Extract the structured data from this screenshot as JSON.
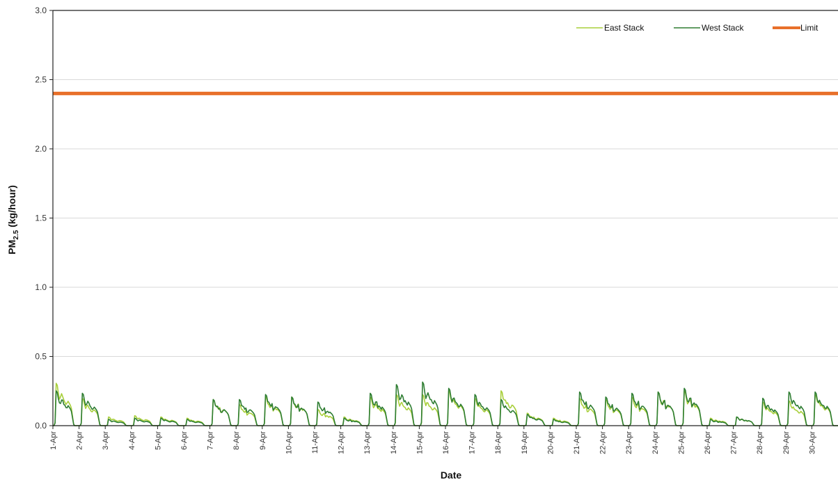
{
  "chart_data": {
    "type": "line",
    "xlabel": "Date",
    "ylabel_main": "PM",
    "ylabel_sub": "2.5",
    "ylabel_unit": " (kg/hour)",
    "ylim": [
      0,
      3.0
    ],
    "yticks": [
      "0.0",
      "0.5",
      "1.0",
      "1.5",
      "2.0",
      "2.5",
      "3.0"
    ],
    "x_tick_labels": [
      "1-Apr",
      "2-Apr",
      "3-Apr",
      "4-Apr",
      "5-Apr",
      "6-Apr",
      "7-Apr",
      "8-Apr",
      "9-Apr",
      "10-Apr",
      "11-Apr",
      "12-Apr",
      "13-Apr",
      "14-Apr",
      "15-Apr",
      "16-Apr",
      "17-Apr",
      "18-Apr",
      "19-Apr",
      "20-Apr",
      "21-Apr",
      "22-Apr",
      "23-Apr",
      "24-Apr",
      "25-Apr",
      "26-Apr",
      "27-Apr",
      "28-Apr",
      "29-Apr",
      "30-Apr"
    ],
    "grid": "horizontal",
    "legend_position": "top-right",
    "daily_peaks": {
      "East Stack": [
        0.34,
        0.22,
        0.07,
        0.08,
        0.07,
        0.06,
        0.21,
        0.17,
        0.23,
        0.23,
        0.13,
        0.07,
        0.23,
        0.25,
        0.25,
        0.28,
        0.22,
        0.28,
        0.1,
        0.06,
        0.22,
        0.21,
        0.23,
        0.27,
        0.28,
        0.06,
        0.07,
        0.19,
        0.2,
        0.25
      ],
      "West Stack": [
        0.28,
        0.26,
        0.05,
        0.06,
        0.06,
        0.05,
        0.21,
        0.21,
        0.25,
        0.23,
        0.19,
        0.06,
        0.26,
        0.33,
        0.35,
        0.3,
        0.25,
        0.21,
        0.09,
        0.05,
        0.27,
        0.23,
        0.26,
        0.27,
        0.3,
        0.05,
        0.07,
        0.22,
        0.27,
        0.27
      ]
    },
    "series": [
      {
        "name": "East Stack",
        "color": "#a8cf3a",
        "width": 1.6
      },
      {
        "name": "West Stack",
        "color": "#2e7d32",
        "width": 1.6
      },
      {
        "name": "Limit",
        "color": "#e8702a",
        "width": 5,
        "value": 2.4
      }
    ]
  }
}
